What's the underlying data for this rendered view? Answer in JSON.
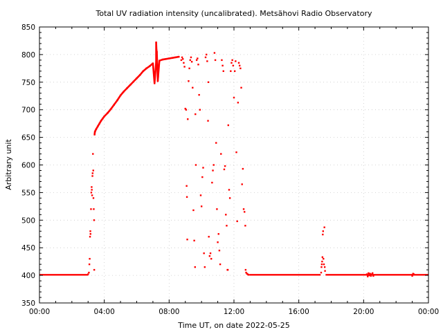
{
  "chart_data": {
    "type": "scatter",
    "title": "Total UV radiation intensity (uncalibrated). Metsähovi Radio Observatory",
    "xlabel": "Time UT, on date 2022-05-25",
    "ylabel": "Arbitrary unit",
    "xlim": [
      0,
      24
    ],
    "ylim": [
      350,
      850
    ],
    "x_ticks": [
      {
        "value": 0,
        "label": "00:00"
      },
      {
        "value": 4,
        "label": "04:00"
      },
      {
        "value": 8,
        "label": "08:00"
      },
      {
        "value": 12,
        "label": "12:00"
      },
      {
        "value": 16,
        "label": "16:00"
      },
      {
        "value": 20,
        "label": "20:00"
      },
      {
        "value": 24,
        "label": "00:00"
      }
    ],
    "y_ticks": [
      350,
      400,
      450,
      500,
      550,
      600,
      650,
      700,
      750,
      800,
      850
    ],
    "grid": true,
    "legend": "none",
    "series_color": "#ff0000",
    "baseline": {
      "value": 401,
      "segments": [
        [
          0,
          3.0
        ],
        [
          12.95,
          17.35
        ],
        [
          17.65,
          24
        ]
      ]
    },
    "series": [
      {
        "values": [
          [
            3.0,
            402
          ],
          [
            3.05,
            405
          ],
          [
            3.08,
            420
          ],
          [
            3.1,
            430
          ],
          [
            3.12,
            470
          ],
          [
            3.14,
            480
          ],
          [
            3.15,
            475
          ],
          [
            3.18,
            520
          ],
          [
            3.2,
            550
          ],
          [
            3.22,
            560
          ],
          [
            3.23,
            555
          ],
          [
            3.25,
            545
          ],
          [
            3.27,
            580
          ],
          [
            3.28,
            585
          ],
          [
            3.3,
            620
          ],
          [
            3.32,
            590
          ],
          [
            3.33,
            540
          ],
          [
            3.35,
            520
          ],
          [
            3.37,
            500
          ],
          [
            3.38,
            410
          ],
          [
            3.4,
            655
          ],
          [
            3.42,
            660
          ],
          [
            3.45,
            662
          ],
          [
            3.5,
            665
          ],
          [
            3.6,
            670
          ],
          [
            3.7,
            675
          ],
          [
            3.8,
            680
          ],
          [
            3.9,
            684
          ],
          [
            4.0,
            688
          ],
          [
            4.2,
            694
          ],
          [
            4.4,
            701
          ],
          [
            4.6,
            709
          ],
          [
            4.8,
            717
          ],
          [
            5.0,
            726
          ],
          [
            5.2,
            733
          ],
          [
            5.4,
            739
          ],
          [
            5.6,
            745
          ],
          [
            5.8,
            751
          ],
          [
            6.0,
            757
          ],
          [
            6.2,
            763
          ],
          [
            6.4,
            770
          ],
          [
            6.6,
            775
          ],
          [
            6.8,
            779
          ],
          [
            7.0,
            784
          ],
          [
            7.2,
            787
          ],
          [
            7.4,
            789
          ],
          [
            7.6,
            791
          ],
          [
            7.8,
            792
          ],
          [
            8.0,
            793
          ],
          [
            8.2,
            794
          ],
          [
            8.4,
            795
          ],
          [
            8.6,
            796
          ],
          [
            7.2,
            822
          ],
          [
            7.22,
            808
          ],
          [
            7.24,
            805
          ],
          [
            7.3,
            752
          ],
          [
            7.32,
            760
          ],
          [
            7.1,
            748
          ],
          [
            8.75,
            790
          ],
          [
            8.8,
            795
          ],
          [
            8.85,
            792
          ],
          [
            8.9,
            785
          ],
          [
            8.95,
            778
          ],
          [
            9.0,
            702
          ],
          [
            9.05,
            700
          ],
          [
            9.08,
            562
          ],
          [
            9.1,
            542
          ],
          [
            9.12,
            465
          ],
          [
            9.15,
            683
          ],
          [
            9.2,
            752
          ],
          [
            9.25,
            775
          ],
          [
            9.3,
            790
          ],
          [
            9.35,
            795
          ],
          [
            9.4,
            787
          ],
          [
            9.45,
            740
          ],
          [
            9.5,
            518
          ],
          [
            9.55,
            463
          ],
          [
            9.6,
            415
          ],
          [
            9.62,
            692
          ],
          [
            9.65,
            600
          ],
          [
            9.7,
            790
          ],
          [
            9.75,
            793
          ],
          [
            9.8,
            782
          ],
          [
            9.85,
            727
          ],
          [
            9.9,
            700
          ],
          [
            9.95,
            545
          ],
          [
            10.0,
            525
          ],
          [
            10.05,
            578
          ],
          [
            10.1,
            595
          ],
          [
            10.15,
            440
          ],
          [
            10.2,
            415
          ],
          [
            10.25,
            795
          ],
          [
            10.3,
            800
          ],
          [
            10.35,
            788
          ],
          [
            10.4,
            680
          ],
          [
            10.42,
            750
          ],
          [
            10.45,
            470
          ],
          [
            10.5,
            435
          ],
          [
            10.55,
            440
          ],
          [
            10.6,
            430
          ],
          [
            10.65,
            568
          ],
          [
            10.7,
            590
          ],
          [
            10.75,
            600
          ],
          [
            10.8,
            803
          ],
          [
            10.85,
            790
          ],
          [
            10.9,
            640
          ],
          [
            10.95,
            520
          ],
          [
            11.0,
            460
          ],
          [
            11.05,
            475
          ],
          [
            11.1,
            445
          ],
          [
            11.15,
            420
          ],
          [
            11.2,
            620
          ],
          [
            11.25,
            790
          ],
          [
            11.3,
            780
          ],
          [
            11.35,
            770
          ],
          [
            11.4,
            592
          ],
          [
            11.45,
            598
          ],
          [
            11.5,
            510
          ],
          [
            11.55,
            490
          ],
          [
            11.6,
            410
          ],
          [
            11.62,
            410
          ],
          [
            11.65,
            672
          ],
          [
            11.7,
            555
          ],
          [
            11.75,
            540
          ],
          [
            11.8,
            770
          ],
          [
            11.85,
            785
          ],
          [
            11.9,
            790
          ],
          [
            11.95,
            780
          ],
          [
            12.0,
            722
          ],
          [
            12.05,
            770
          ],
          [
            12.1,
            788
          ],
          [
            12.15,
            623
          ],
          [
            12.2,
            498
          ],
          [
            12.25,
            713
          ],
          [
            12.3,
            785
          ],
          [
            12.35,
            780
          ],
          [
            12.4,
            775
          ],
          [
            12.45,
            740
          ],
          [
            12.5,
            565
          ],
          [
            12.55,
            593
          ],
          [
            12.6,
            520
          ],
          [
            12.65,
            515
          ],
          [
            12.7,
            490
          ],
          [
            12.72,
            410
          ],
          [
            12.75,
            405
          ],
          [
            12.8,
            403
          ],
          [
            12.85,
            402
          ],
          [
            12.9,
            401
          ],
          [
            17.38,
            405
          ],
          [
            17.4,
            415
          ],
          [
            17.42,
            420
          ],
          [
            17.44,
            425
          ],
          [
            17.46,
            433
          ],
          [
            17.48,
            474
          ],
          [
            17.5,
            480
          ],
          [
            17.52,
            430
          ],
          [
            17.55,
            420
          ],
          [
            17.58,
            487
          ],
          [
            17.6,
            415
          ],
          [
            17.62,
            408
          ],
          [
            20.2,
            402
          ],
          [
            20.25,
            398
          ],
          [
            20.3,
            404
          ],
          [
            20.35,
            400
          ],
          [
            20.4,
            403
          ],
          [
            20.45,
            399
          ],
          [
            20.5,
            402
          ],
          [
            20.55,
            404
          ],
          [
            20.6,
            399
          ],
          [
            23.0,
            399
          ],
          [
            23.05,
            403
          ],
          [
            23.1,
            402
          ]
        ]
      }
    ]
  }
}
